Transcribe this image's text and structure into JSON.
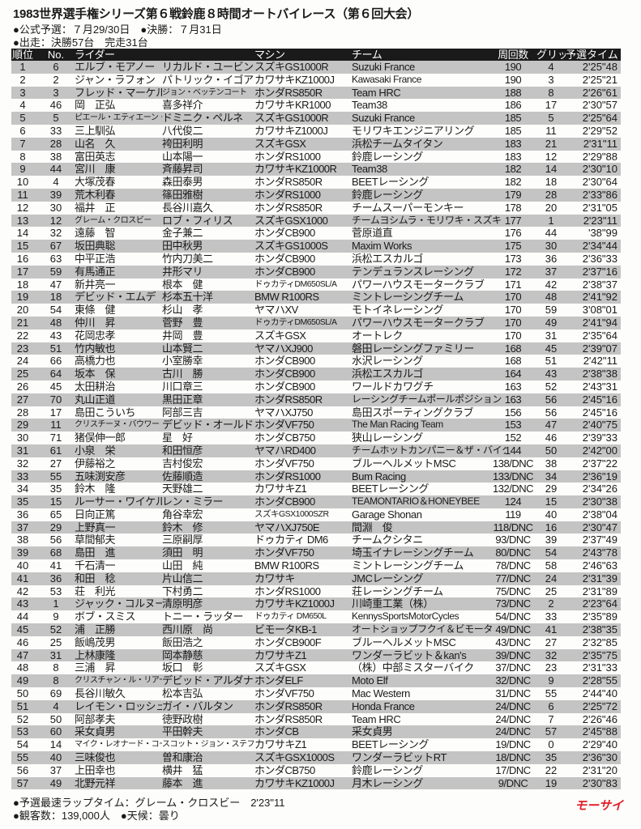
{
  "title": "1983世界選手権シリーズ第６戦鈴鹿８時間オートバイレース（第６回大会）",
  "info": [
    "●公式予選：７月29/30日　●決勝：７月31日",
    "●出走：決勝57台　完走31台"
  ],
  "headers": {
    "pos": "順位",
    "no": "No.",
    "rider": "ライダー",
    "machine": "マシン",
    "team": "チーム",
    "laps": "周回数",
    "grid": "グリッド",
    "qtime": "予選タイム"
  },
  "rows": [
    [
      "1",
      "6",
      "エルブ・モアノー",
      "リカルド・ユービン",
      "スズキGS1000R",
      "Suzuki France",
      "190",
      "4",
      "2'25\"48"
    ],
    [
      "2",
      "2",
      "ジャン・ラフォン",
      "パトリック・イゴア",
      "カワサキKZ1000J",
      "Kawasaki France",
      "190",
      "3",
      "2'25\"21"
    ],
    [
      "3",
      "3",
      "フレッド・マーケル",
      "ジョン・ベッテンコート",
      "ホンダRS850R",
      "Team HRC",
      "188",
      "8",
      "2'26\"61"
    ],
    [
      "4",
      "46",
      "岡　正弘",
      "喜多祥介",
      "カワサキKR1000",
      "Team38",
      "186",
      "17",
      "2'30\"57"
    ],
    [
      "5",
      "5",
      "ピエール・エティエーン・サミン",
      "ドミニク・ペルネ",
      "スズキGS1000R",
      "Suzuki France",
      "185",
      "5",
      "2'25\"64"
    ],
    [
      "6",
      "33",
      "三上馴弘",
      "八代俊二",
      "カワサキZ1000J",
      "モリワキエンジニアリング",
      "185",
      "11",
      "2'29\"52"
    ],
    [
      "7",
      "28",
      "山名　久",
      "袴田利明",
      "スズキGSX",
      "浜松チームタイタン",
      "183",
      "21",
      "2'31\"11"
    ],
    [
      "8",
      "38",
      "富田英志",
      "山本陽一",
      "ホンダRS1000",
      "鈴鹿レーシング",
      "183",
      "12",
      "2'29\"88"
    ],
    [
      "9",
      "44",
      "宮川　康",
      "斉藤昇司",
      "カワサキKZ1000R",
      "Team38",
      "182",
      "14",
      "2'30\"10"
    ],
    [
      "10",
      "4",
      "大塚茂春",
      "森田泰男",
      "ホンダRS850R",
      "BEETレーシング",
      "182",
      "18",
      "2'30\"64"
    ],
    [
      "11",
      "39",
      "荒木利春",
      "篠田雅樹",
      "ホンダRS1000",
      "鈴鹿レーシング",
      "179",
      "28",
      "2'33\"86"
    ],
    [
      "12",
      "30",
      "福井　正",
      "長谷川嘉久",
      "ホンダRS850R",
      "チームスーパーモンキー",
      "178",
      "20",
      "2'31\"05"
    ],
    [
      "13",
      "12",
      "グレーム・クロスビー",
      "ロブ・フィリス",
      "スズキGSX1000",
      "チームヨシムラ・モリワキ・スズキ",
      "177",
      "1",
      "2'23\"11"
    ],
    [
      "14",
      "32",
      "遠藤　智",
      "金子兼二",
      "ホンダCB900",
      "菅原道直",
      "176",
      "44",
      "'38\"99"
    ],
    [
      "15",
      "67",
      "坂田典聡",
      "田中秋男",
      "スズキGS1000S",
      "Maxim Works",
      "175",
      "30",
      "2'34\"44"
    ],
    [
      "16",
      "63",
      "中平正浩",
      "竹内刀美二",
      "ホンダCB900",
      "浜松エスカルゴ",
      "173",
      "36",
      "2'36\"33"
    ],
    [
      "17",
      "59",
      "有馬通正",
      "井形マリ",
      "ホンダCB900",
      "テンデュランスレーシング",
      "172",
      "37",
      "2'37\"16"
    ],
    [
      "18",
      "47",
      "新井亮一",
      "根本　健",
      "ドゥカティDM650SL/A",
      "パワーハウスモータークラブ",
      "171",
      "42",
      "2'38\"37"
    ],
    [
      "19",
      "18",
      "デビッド・エムデ",
      "杉本五十洋",
      "BMW R100RS",
      "ミントレーシングチーム",
      "170",
      "48",
      "2'41\"92"
    ],
    [
      "20",
      "54",
      "東條　健",
      "杉山　孝",
      "ヤマハXV",
      "モトイネレーシング",
      "170",
      "59",
      "3'08\"01"
    ],
    [
      "21",
      "48",
      "仲川　昇",
      "菅野　豊",
      "ドゥカティDM650SL/A",
      "パワーハウスモータークラブ",
      "170",
      "49",
      "2'41\"94"
    ],
    [
      "22",
      "43",
      "花岡忠孝",
      "井岡　豊",
      "スズキGSX",
      "オートレク",
      "170",
      "31",
      "2'35\"64"
    ],
    [
      "23",
      "51",
      "竹内敏也",
      "山本賢二",
      "ヤマハXJ900",
      "磐田レーシングファミリー",
      "168",
      "45",
      "2'39\"07"
    ],
    [
      "24",
      "66",
      "高橋力也",
      "小室勝幸",
      "ホンダCB900",
      "水沢レーシング",
      "168",
      "51",
      "2'42\"11"
    ],
    [
      "25",
      "64",
      "坂本　保",
      "古川　勝",
      "ホンダCB900",
      "浜松エスカルゴ",
      "164",
      "43",
      "2'38\"38"
    ],
    [
      "26",
      "45",
      "太田耕治",
      "川口章三",
      "ホンダCB900",
      "ワールドカワグチ",
      "163",
      "52",
      "2'43\"31"
    ],
    [
      "27",
      "70",
      "丸山正道",
      "黒田正章",
      "ホンダRS850R",
      "レーシングチームポールポジション",
      "163",
      "56",
      "2'45\"16"
    ],
    [
      "28",
      "17",
      "島田こういち",
      "阿部三吉",
      "ヤマハXJ750",
      "島田スポーティングクラブ",
      "156",
      "56",
      "2'45\"16"
    ],
    [
      "29",
      "11",
      "クリスチーヌ・バウワー",
      "デビッド・オールド",
      "ホンダVF750",
      "The Man Racing Team",
      "153",
      "47",
      "2'40\"75"
    ],
    [
      "30",
      "71",
      "猪俣伸一郎",
      "星　好",
      "ホンダCB750",
      "狭山レーシング",
      "152",
      "46",
      "2'39\"33"
    ],
    [
      "31",
      "61",
      "小泉　栄",
      "和田恒彦",
      "ヤマハRD400",
      "チームホットカンパニー＆ザ・バイク",
      "144",
      "50",
      "2'42\"00"
    ],
    [
      "32",
      "27",
      "伊藤裕之",
      "吉村俊宏",
      "ホンダVF750",
      "ブルーヘルメットMSC",
      "138/DNC",
      "38",
      "2'37\"22"
    ],
    [
      "33",
      "55",
      "五味渕安彦",
      "佐藤順造",
      "ホンダRS1000",
      "Bum Racing",
      "133/DNC",
      "34",
      "2'36\"19"
    ],
    [
      "34",
      "35",
      "鈴木　隆",
      "天野雄二",
      "カワサキZ1",
      "BEETレーシング",
      "132/DNC",
      "29",
      "2'34\"26"
    ],
    [
      "35",
      "15",
      "ルーサー・ワイケル",
      "レン・ミラー",
      "ホンダCB900",
      "TEAMONTARIO＆HONEYBEE",
      "124",
      "15",
      "2'30\"38"
    ],
    [
      "36",
      "65",
      "日向正篤",
      "角谷幸宏",
      "スズキGSX1000SZR",
      "Garage Shonan",
      "119",
      "40",
      "2'38\"04"
    ],
    [
      "37",
      "29",
      "上野真一",
      "鈴木　修",
      "ヤマハXJ750E",
      "間淵　俊",
      "118/DNC",
      "16",
      "2'30\"47"
    ],
    [
      "38",
      "56",
      "草間郁夫",
      "三原嗣厚",
      "ドゥカティ DM6",
      "チームクシタニ",
      "93/DNC",
      "39",
      "2'37\"49"
    ],
    [
      "39",
      "68",
      "島田　進",
      "須田　明",
      "ホンダVF750",
      "埼玉イナレーシングチーム",
      "80/DNC",
      "54",
      "2'43\"78"
    ],
    [
      "40",
      "41",
      "千石清一",
      "山田　純",
      "BMW R100RS",
      "ミントレーシングチーム",
      "78/DNC",
      "58",
      "2'46\"63"
    ],
    [
      "41",
      "36",
      "和田　稔",
      "片山信二",
      "カワサキ",
      "JMCレーシング",
      "77/DNC",
      "24",
      "2'31\"39"
    ],
    [
      "42",
      "53",
      "荘　利光",
      "下村勇二",
      "ホンダRS1000",
      "荘レーシングチーム",
      "75/DNC",
      "25",
      "2'31\"89"
    ],
    [
      "43",
      "1",
      "ジャック・コルヌー",
      "清原明彦",
      "カワサキKZ1000J",
      "川崎重工業（株）",
      "73/DNC",
      "2",
      "2'23\"64"
    ],
    [
      "44",
      "9",
      "ボブ・スミス",
      "トニー・ラッター",
      "ドゥカティ DM650L",
      "KennysSportsMotorCycles",
      "54/DNC",
      "33",
      "2'35\"89"
    ],
    [
      "45",
      "52",
      "浦　正勝",
      "西川原　尚",
      "ビモータKB-1",
      "オートショップフクイ＆ビモータ",
      "49/DNC",
      "41",
      "2'38\"35"
    ],
    [
      "46",
      "25",
      "飯嶋茂男",
      "飯田浩之",
      "ホンダCB900F",
      "ブルーヘルメットMSC",
      "43/DNC",
      "27",
      "2'32\"85"
    ],
    [
      "47",
      "31",
      "上林康隆",
      "岡本静慈",
      "カワサキZ1",
      "ワンダーラビット＆kan's",
      "39/DNC",
      "32",
      "2'35\"75"
    ],
    [
      "48",
      "8",
      "三浦　昇",
      "坂口　彰",
      "スズキGSX",
      "（株）中部ミスターバイク",
      "37/DNC",
      "23",
      "2'31\"33"
    ],
    [
      "49",
      "8",
      "クリスチャン・ル・リアール",
      "デビッド・アルダナ",
      "ホンダELF",
      "Moto Elf",
      "32/DNC",
      "9",
      "2'28\"55"
    ],
    [
      "50",
      "69",
      "長谷川敏久",
      "松本吉弘",
      "ホンダVF750",
      "Mac Western",
      "31/DNC",
      "55",
      "2'44\"40"
    ],
    [
      "51",
      "4",
      "レイモン・ロッシュ",
      "ガイ・バルタン",
      "ホンダRS850R",
      "Honda France",
      "24/DNC",
      "6",
      "2'25\"72"
    ],
    [
      "52",
      "50",
      "阿部孝夫",
      "徳野政樹",
      "ホンダRS850R",
      "Team HRC",
      "24/DNC",
      "7",
      "2'26\"46"
    ],
    [
      "53",
      "60",
      "采女貞男",
      "平田幹夫",
      "ホンダCB",
      "采女貞男",
      "24/DNC",
      "57",
      "2'45\"88"
    ],
    [
      "54",
      "14",
      "マイク・レオナード・コール",
      "スコット・ジョン・ステファンズ",
      "カワサキZ1",
      "BEETレーシング",
      "19/DNC",
      "0",
      "2'29\"40"
    ],
    [
      "55",
      "40",
      "三味俊也",
      "曽和康治",
      "スズキGSX1000S",
      "ワンダーラビットRT",
      "18/DNC",
      "35",
      "2'36\"30"
    ],
    [
      "56",
      "37",
      "上田幸也",
      "横井　猛",
      "ホンダCB750",
      "鈴鹿レーシング",
      "17/DNC",
      "22",
      "2'31\"20"
    ],
    [
      "57",
      "49",
      "北野元祥",
      "藤本　進",
      "カワサキKZ1000J",
      "月木レーシング",
      "9/DNC",
      "19",
      "2'30\"83"
    ]
  ],
  "footer": [
    "●予選最速ラップタイム：グレーム・クロスビー　2'23\"11",
    "●観客数：139,000人　●天候：曇り"
  ],
  "logo": "モーサイ",
  "colors": {
    "header_bg": "#1a1a1a",
    "stripe": "#c4c4c4",
    "logo": "#e0202a"
  }
}
